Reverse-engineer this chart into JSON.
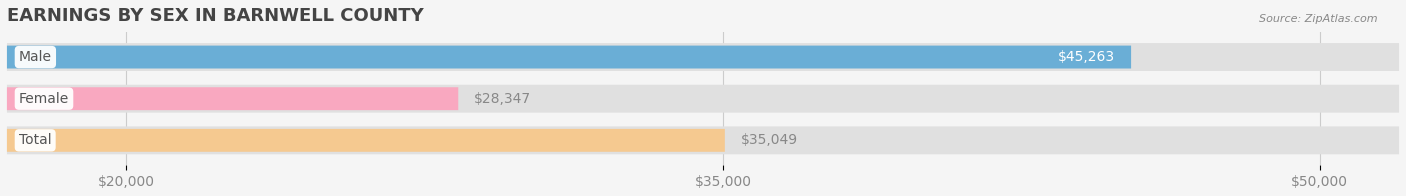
{
  "title": "EARNINGS BY SEX IN BARNWELL COUNTY",
  "source": "Source: ZipAtlas.com",
  "categories": [
    "Male",
    "Female",
    "Total"
  ],
  "values": [
    45263,
    28347,
    35049
  ],
  "bar_colors": [
    "#6aaed6",
    "#f9a8c0",
    "#f5c990"
  ],
  "label_colors": [
    "#ffffff",
    "#888888",
    "#888888"
  ],
  "value_labels": [
    "$45,263",
    "$28,347",
    "$35,049"
  ],
  "xmin": 17000,
  "xmax": 52000,
  "xticks": [
    20000,
    35000,
    50000
  ],
  "xtick_labels": [
    "$20,000",
    "$35,000",
    "$50,000"
  ],
  "background_color": "#f5f5f5",
  "title_fontsize": 13,
  "tick_fontsize": 10,
  "bar_label_fontsize": 10,
  "category_fontsize": 10
}
